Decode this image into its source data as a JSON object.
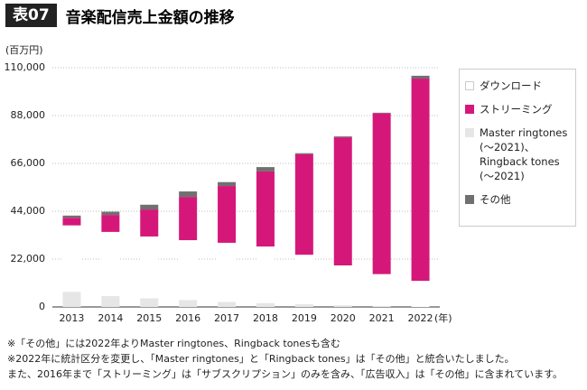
{
  "chart_data": {
    "type": "stacked-bar",
    "figure_label": "表07",
    "title": "音楽配信売上金額の推移",
    "y_label": "(百万円)",
    "x_label": "(年)",
    "categories": [
      "2013",
      "2014",
      "2015",
      "2016",
      "2017",
      "2018",
      "2019",
      "2020",
      "2021",
      "2022"
    ],
    "series": [
      {
        "name": "ダウンロード",
        "color": "#ffffff",
        "values": [
          30500,
          29500,
          28400,
          27500,
          27200,
          26000,
          22700,
          18300,
          14600,
          12000
        ]
      },
      {
        "name": "ストリーミング",
        "color": "#d6177a",
        "values": [
          3500,
          7800,
          12400,
          19900,
          26100,
          34500,
          46200,
          58900,
          73900,
          93000
        ]
      },
      {
        "name": "Master ringtones (～2021)、Ringback tones (～2021)",
        "color": "#e6e6e6",
        "values": [
          7000,
          5000,
          4000,
          3200,
          2300,
          1800,
          1300,
          800,
          500,
          0
        ]
      },
      {
        "name": "その他",
        "color": "#707070",
        "values": [
          1000,
          1500,
          2200,
          2500,
          1800,
          2000,
          500,
          400,
          300,
          1300
        ]
      }
    ],
    "ylim": [
      0,
      110000
    ],
    "yticks": [
      0,
      {
        "value": 22000,
        "label": "22,000"
      },
      {
        "value": 44000,
        "label": "44,000"
      },
      {
        "value": 66000,
        "label": "66,000"
      },
      {
        "value": 88000,
        "label": "88,000"
      },
      {
        "value": 110000,
        "label": "110,000"
      }
    ],
    "grid": true,
    "notes": [
      "※「その他」には2022年よりMaster ringtones、Ringback tonesも含む",
      "※2022年に統計区分を変更し、「Master ringtones」と「Ringback tones」は「その他」と統合いたしました。",
      "また、2016年まで「ストリーミング」は「サブスクリプション」のみを含み、「広告収入」は「その他」に含まれています。"
    ]
  }
}
